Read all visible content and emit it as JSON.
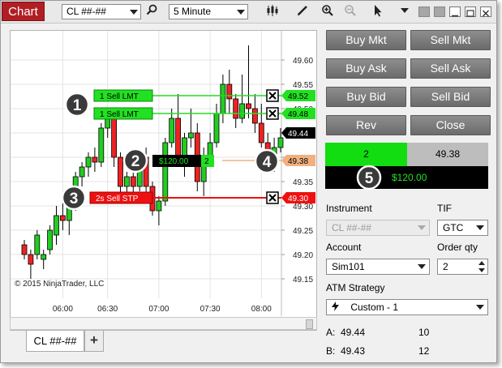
{
  "toolbar": {
    "chart_tab": "Chart",
    "instrument": "CL ##-##",
    "interval": "5 Minute"
  },
  "chart": {
    "price_labels": [
      "49.60",
      "49.55",
      "49.50",
      "49.45",
      "49.40",
      "49.35",
      "49.30",
      "49.25",
      "49.20",
      "49.15"
    ],
    "time_labels": [
      "06:00",
      "06:30",
      "07:00",
      "07:30",
      "08:00"
    ],
    "copyright": "© 2015 NinjaTrader, LLC",
    "orders": [
      {
        "label": "1  Sell LMT",
        "price": "49.52",
        "callout": "1"
      },
      {
        "label": "1  Sell LMT",
        "price": "49.48",
        "callout": "1"
      },
      {
        "label": "2s  Sell STP",
        "price": "49.30",
        "callout": "3"
      }
    ],
    "position": {
      "pnl": "$120.00",
      "qty": "2",
      "price": "49.38",
      "callout_pnl": "2",
      "callout_price": "4"
    },
    "last_price": "49.44"
  },
  "bottom_tabs": {
    "tab": "CL ##-##",
    "add": "+"
  },
  "panel": {
    "buttons": [
      "Buy Mkt",
      "Sell Mkt",
      "Buy Ask",
      "Sell Ask",
      "Buy Bid",
      "Sell Bid",
      "Rev",
      "Close"
    ],
    "position_qty": "2",
    "position_price": "49.38",
    "pnl": "$120.00",
    "pnl_callout": "5",
    "instrument_label": "Instrument",
    "instrument_value": "CL ##-##",
    "tif_label": "TIF",
    "tif_value": "GTC",
    "account_label": "Account",
    "account_value": "Sim101",
    "qty_label": "Order qty",
    "qty_value": "2",
    "atm_label": "ATM Strategy",
    "atm_value": "Custom - 1",
    "ask_label": "A:",
    "ask_price": "49.44",
    "ask_size": "10",
    "bid_label": "B:",
    "bid_price": "49.43",
    "bid_size": "12"
  },
  "colors": {
    "up": "#22cc22",
    "down": "#ee2222",
    "chart_tab": "#b01e23",
    "limit_line": "#22dd22",
    "stop_line": "#ee1111",
    "position_line": "#f0b080"
  },
  "chart_data": {
    "type": "candlestick",
    "x_labels": [
      "06:00",
      "06:30",
      "07:00",
      "07:30",
      "08:00"
    ],
    "y_labels": [
      "49.15",
      "49.20",
      "49.25",
      "49.30",
      "49.35",
      "49.40",
      "49.45",
      "49.50",
      "49.55",
      "49.60"
    ],
    "ylim": [
      49.11,
      49.66
    ],
    "candles": [
      {
        "o": 49.22,
        "h": 49.23,
        "l": 49.19,
        "c": 49.2
      },
      {
        "o": 49.2,
        "h": 49.21,
        "l": 49.15,
        "c": 49.18
      },
      {
        "o": 49.2,
        "h": 49.25,
        "l": 49.19,
        "c": 49.24
      },
      {
        "o": 49.19,
        "h": 49.21,
        "l": 49.17,
        "c": 49.2
      },
      {
        "o": 49.21,
        "h": 49.26,
        "l": 49.2,
        "c": 49.25
      },
      {
        "o": 49.24,
        "h": 49.3,
        "l": 49.22,
        "c": 49.28
      },
      {
        "o": 49.28,
        "h": 49.31,
        "l": 49.25,
        "c": 49.27
      },
      {
        "o": 49.27,
        "h": 49.31,
        "l": 49.24,
        "c": 49.3
      },
      {
        "o": 49.3,
        "h": 49.37,
        "l": 49.29,
        "c": 49.36
      },
      {
        "o": 49.36,
        "h": 49.39,
        "l": 49.34,
        "c": 49.38
      },
      {
        "o": 49.38,
        "h": 49.41,
        "l": 49.36,
        "c": 49.4
      },
      {
        "o": 49.4,
        "h": 49.42,
        "l": 49.37,
        "c": 49.39
      },
      {
        "o": 49.39,
        "h": 49.47,
        "l": 49.38,
        "c": 49.46
      },
      {
        "o": 49.46,
        "h": 49.5,
        "l": 49.44,
        "c": 49.48
      },
      {
        "o": 49.48,
        "h": 49.49,
        "l": 49.38,
        "c": 49.4
      },
      {
        "o": 49.4,
        "h": 49.41,
        "l": 49.32,
        "c": 49.34
      },
      {
        "o": 49.34,
        "h": 49.37,
        "l": 49.31,
        "c": 49.36
      },
      {
        "o": 49.36,
        "h": 49.38,
        "l": 49.32,
        "c": 49.34
      },
      {
        "o": 49.34,
        "h": 49.41,
        "l": 49.33,
        "c": 49.4
      },
      {
        "o": 49.4,
        "h": 49.42,
        "l": 49.32,
        "c": 49.34
      },
      {
        "o": 49.34,
        "h": 49.35,
        "l": 49.28,
        "c": 49.29
      },
      {
        "o": 49.29,
        "h": 49.32,
        "l": 49.26,
        "c": 49.31
      },
      {
        "o": 49.31,
        "h": 49.44,
        "l": 49.3,
        "c": 49.43
      },
      {
        "o": 49.43,
        "h": 49.5,
        "l": 49.42,
        "c": 49.48
      },
      {
        "o": 49.48,
        "h": 49.53,
        "l": 49.38,
        "c": 49.4
      },
      {
        "o": 49.4,
        "h": 49.45,
        "l": 49.36,
        "c": 49.44
      },
      {
        "o": 49.44,
        "h": 49.5,
        "l": 49.42,
        "c": 49.45
      },
      {
        "o": 49.45,
        "h": 49.47,
        "l": 49.33,
        "c": 49.35
      },
      {
        "o": 49.35,
        "h": 49.42,
        "l": 49.32,
        "c": 49.4
      },
      {
        "o": 49.4,
        "h": 49.45,
        "l": 49.38,
        "c": 49.43
      },
      {
        "o": 49.43,
        "h": 49.51,
        "l": 49.42,
        "c": 49.49
      },
      {
        "o": 49.49,
        "h": 49.57,
        "l": 49.47,
        "c": 49.55
      },
      {
        "o": 49.55,
        "h": 49.58,
        "l": 49.49,
        "c": 49.52
      },
      {
        "o": 49.52,
        "h": 49.53,
        "l": 49.46,
        "c": 49.48
      },
      {
        "o": 49.48,
        "h": 49.57,
        "l": 49.47,
        "c": 49.51
      },
      {
        "o": 49.51,
        "h": 49.63,
        "l": 49.48,
        "c": 49.5
      },
      {
        "o": 49.5,
        "h": 49.53,
        "l": 49.45,
        "c": 49.47
      },
      {
        "o": 49.47,
        "h": 49.51,
        "l": 49.42,
        "c": 49.43
      },
      {
        "o": 49.43,
        "h": 49.45,
        "l": 49.39,
        "c": 49.4
      },
      {
        "o": 49.4,
        "h": 49.44,
        "l": 49.37,
        "c": 49.42
      },
      {
        "o": 49.42,
        "h": 49.46,
        "l": 49.41,
        "c": 49.44
      }
    ]
  }
}
